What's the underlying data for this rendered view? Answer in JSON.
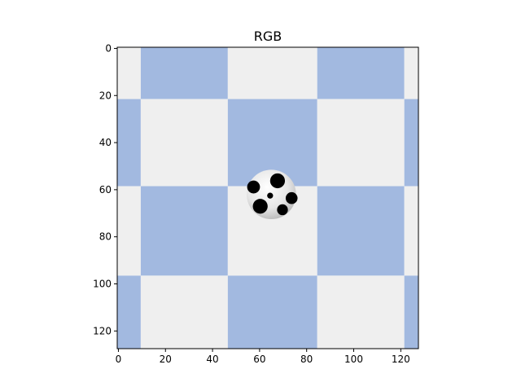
{
  "chart_data": {
    "type": "image",
    "title": "RGB",
    "xlim": [
      -0.5,
      127.5
    ],
    "ylim": [
      127.5,
      -0.5
    ],
    "xticks": [
      0,
      20,
      40,
      60,
      80,
      100,
      120
    ],
    "yticks": [
      0,
      20,
      40,
      60,
      80,
      100,
      120
    ],
    "xtick_labels": [
      "0",
      "20",
      "40",
      "60",
      "80",
      "100",
      "120"
    ],
    "ytick_labels": [
      "0",
      "20",
      "40",
      "60",
      "80",
      "100",
      "120"
    ],
    "checkerboard": {
      "col_edges": [
        -0.5,
        9.5,
        46.5,
        84.5,
        121.5,
        127.5
      ],
      "row_edges": [
        -0.5,
        21.5,
        58.5,
        96.5,
        127.5
      ],
      "first_cell_color": "#efefef",
      "colors": [
        "#efefef",
        "#a2b9e0"
      ]
    },
    "ball": {
      "center_x": 65,
      "center_y": 62,
      "radius": 10.5,
      "base_color": "#f3f3f3",
      "shade_color": "#b9b9b9",
      "patch_color": "#000000"
    },
    "grid": false
  }
}
